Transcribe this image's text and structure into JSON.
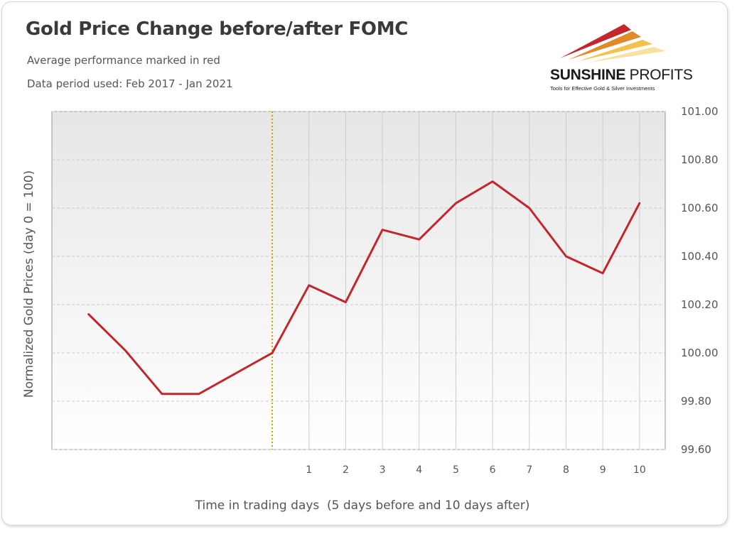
{
  "header": {
    "title": "Gold Price Change before/after FOMC",
    "subtitle_1": "Average performance marked in red",
    "subtitle_2": "Data period used: Feb 2017 - Jan 2021"
  },
  "logo": {
    "name_bold": "SUNSHINE",
    "name_regular": " PROFITS",
    "tagline": "Tools for Effective Gold & Silver Investments"
  },
  "colors": {
    "series_line": "#c1272d",
    "event_marker": "#c8a000",
    "plot_background_top": "#e6e6e6",
    "plot_background_bottom": "#ffffff",
    "grid": "#cccccc"
  },
  "chart_data": {
    "type": "line",
    "title": "Gold Price Change before/after FOMC",
    "xlabel": "Time in trading days  (5 days before and 10 days after)",
    "ylabel": "Normalized Gold Prices (day 0 = 100)",
    "x": [
      -5,
      -4,
      -3,
      -2,
      -1,
      0,
      1,
      2,
      3,
      4,
      5,
      6,
      7,
      8,
      9,
      10
    ],
    "x_tick_labels": [
      "",
      "",
      "",
      "",
      "",
      "",
      "1",
      "2",
      "3",
      "4",
      "5",
      "6",
      "7",
      "8",
      "9",
      "10"
    ],
    "xlim": [
      -6,
      10.7
    ],
    "y_tick_labels": [
      "99.60",
      "99.80",
      "100.00",
      "100.20",
      "100.40",
      "100.60",
      "100.80",
      "101.00"
    ],
    "ylim": [
      99.6,
      101.0
    ],
    "y_axis_side": "right",
    "event_marker": {
      "x": 0,
      "style": "dotted vertical line"
    },
    "series": [
      {
        "values": [
          100.16,
          100.01,
          99.83,
          99.83,
          null,
          100.0,
          100.28,
          100.21,
          100.51,
          100.47,
          100.62,
          100.71,
          100.6,
          100.4,
          100.33,
          100.62
        ]
      }
    ],
    "grid": true,
    "legend": "none"
  }
}
